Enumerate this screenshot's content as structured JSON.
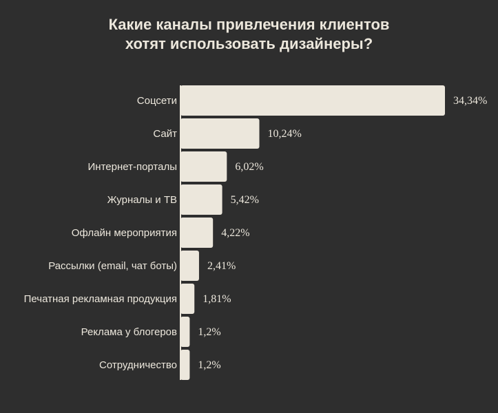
{
  "chart_data": {
    "type": "bar",
    "orientation": "horizontal",
    "title_lines": [
      "Какие каналы привлечения клиентов",
      "хотят использовать дизайнеры?"
    ],
    "categories": [
      "Соцсети",
      "Сайт",
      "Интернет-порталы",
      "Журналы и ТВ",
      "Офлайн мероприятия",
      "Рассылки (email, чат боты)",
      "Печатная рекламная продукция",
      "Реклама у блогеров",
      "Сотрудничество"
    ],
    "values": [
      34.34,
      10.24,
      6.02,
      5.42,
      4.22,
      2.41,
      1.81,
      1.2,
      1.2
    ],
    "value_labels": [
      "34,34%",
      "10,24%",
      "6,02%",
      "5,42%",
      "4,22%",
      "2,41%",
      "1,81%",
      "1,2%",
      "1,2%"
    ],
    "unit": "%",
    "xlim": [
      0,
      34.34
    ],
    "grid": false,
    "legend": "none",
    "colors": {
      "background": "#2e2e2e",
      "bar": "#ece7dc",
      "text": "#ece7dc"
    }
  }
}
